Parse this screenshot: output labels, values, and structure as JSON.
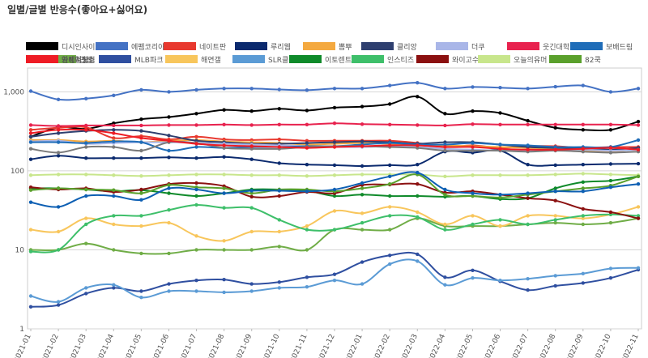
{
  "chart_data": {
    "type": "line",
    "title": "일별/글별 반응수(좋아요+싫어요)",
    "xlabel": "",
    "ylabel": "",
    "y_scale": "log",
    "ylim": [
      1,
      2000
    ],
    "yticks": [
      1,
      10,
      100,
      1000
    ],
    "ytick_labels": [
      "1",
      "10",
      "100",
      "1,000"
    ],
    "grid": true,
    "legend_position": "top",
    "x": [
      "2021-01",
      "2021-02",
      "2021-03",
      "2021-04",
      "2021-05",
      "2021-06",
      "2021-07",
      "2021-08",
      "2021-09",
      "2021-10",
      "2021-11",
      "2021-12",
      "2022-01",
      "2022-02",
      "2022-03",
      "2022-04",
      "2022-05",
      "2022-06",
      "2022-07",
      "2022-08",
      "2022-09",
      "2022-10",
      "2022-11"
    ],
    "series": [
      {
        "name": "디시인사이드",
        "color": "#000000",
        "values": [
          270,
          355,
          340,
          400,
          450,
          480,
          530,
          590,
          570,
          610,
          580,
          630,
          650,
          700,
          870,
          530,
          570,
          540,
          430,
          350,
          330,
          330,
          420
        ]
      },
      {
        "name": "에펨코리아",
        "color": "#4472c4",
        "values": [
          1020,
          800,
          820,
          900,
          1060,
          1000,
          1060,
          1100,
          1100,
          1070,
          1050,
          1100,
          1100,
          1200,
          1300,
          1100,
          1150,
          1130,
          1100,
          1160,
          1200,
          1000,
          1100
        ]
      },
      {
        "name": "네이트판",
        "color": "#e8392f",
        "values": [
          330,
          350,
          355,
          260,
          275,
          250,
          270,
          250,
          245,
          250,
          240,
          240,
          240,
          240,
          225,
          200,
          210,
          195,
          205,
          205,
          195,
          200,
          200
        ]
      },
      {
        "name": "루리웹",
        "color": "#0b2a6e",
        "values": [
          140,
          155,
          145,
          145,
          145,
          148,
          145,
          150,
          140,
          125,
          120,
          118,
          115,
          118,
          120,
          175,
          170,
          180,
          120,
          118,
          120,
          122,
          123
        ]
      },
      {
        "name": "뽐뿌",
        "color": "#f4a940",
        "values": [
          245,
          245,
          235,
          240,
          230,
          240,
          245,
          235,
          230,
          225,
          215,
          220,
          225,
          220,
          215,
          210,
          205,
          200,
          195,
          190,
          180,
          175,
          190
        ]
      },
      {
        "name": "클리앙",
        "color": "#2e3f6f",
        "values": [
          270,
          300,
          320,
          330,
          320,
          280,
          240,
          230,
          220,
          220,
          225,
          230,
          235,
          230,
          220,
          230,
          230,
          215,
          200,
          195,
          195,
          185,
          195
        ]
      },
      {
        "name": "더쿠",
        "color": "#a9b6e8",
        "values": [
          235,
          240,
          220,
          225,
          230,
          230,
          225,
          220,
          215,
          210,
          205,
          200,
          200,
          205,
          200,
          190,
          185,
          180,
          180,
          185,
          185,
          180,
          185
        ]
      },
      {
        "name": "웃긴대학",
        "color": "#e8224e",
        "values": [
          380,
          370,
          375,
          375,
          375,
          380,
          380,
          385,
          380,
          385,
          385,
          400,
          390,
          385,
          380,
          375,
          390,
          385,
          385,
          385,
          385,
          385,
          380
        ]
      },
      {
        "name": "보배드림",
        "color": "#1f6db8",
        "values": [
          230,
          230,
          225,
          235,
          230,
          180,
          200,
          195,
          200,
          200,
          205,
          205,
          215,
          225,
          215,
          215,
          225,
          215,
          210,
          200,
          200,
          200,
          245
        ]
      },
      {
        "name": "안쌤",
        "color": "#70ad47",
        "values": [
          10,
          10,
          12,
          10,
          9,
          9,
          10,
          10,
          10,
          11,
          10,
          18,
          18,
          18,
          25,
          20,
          20,
          20,
          21,
          22,
          21,
          22,
          25
        ]
      },
      {
        "name": "MLB파크",
        "color": "#2f4fa0",
        "values": [
          1.9,
          2,
          2.8,
          3.3,
          3,
          3.7,
          4.1,
          4.2,
          3.7,
          3.9,
          4.5,
          4.9,
          7,
          8.5,
          8.8,
          4.5,
          5.5,
          4,
          3.1,
          3.5,
          3.8,
          4.4,
          5.6
        ]
      },
      {
        "name": "해연갤",
        "color": "#f8c65c",
        "values": [
          18,
          17,
          25,
          21,
          20,
          22,
          15,
          13,
          17,
          17,
          20,
          31,
          29,
          35,
          30,
          21,
          27,
          20,
          27,
          27,
          25,
          28,
          35
        ]
      },
      {
        "name": "SLR클럽",
        "color": "#5b9bd5",
        "values": [
          2.6,
          2.2,
          3.3,
          3.6,
          2.5,
          3,
          3,
          2.9,
          3,
          3.3,
          3.4,
          4.1,
          3.7,
          6.6,
          7.2,
          3.6,
          4.4,
          4.1,
          4.3,
          4.7,
          5,
          5.8,
          5.9
        ]
      },
      {
        "name": "이토렌트",
        "color": "#0f8a2a",
        "values": [
          60,
          60,
          58,
          55,
          57,
          52,
          48,
          52,
          58,
          58,
          56,
          48,
          50,
          48,
          48,
          47,
          48,
          44,
          45,
          60,
          72,
          75,
          85
        ]
      },
      {
        "name": "인스티즈",
        "color": "#3ebf6a",
        "values": [
          9.5,
          10,
          21,
          27,
          27,
          32,
          37,
          34,
          34,
          24,
          18,
          18,
          22,
          27,
          26,
          18,
          21,
          24,
          21,
          24,
          27,
          28,
          27
        ]
      },
      {
        "name": "와이고수",
        "color": "#8b1010",
        "values": [
          62,
          58,
          60,
          54,
          58,
          68,
          70,
          64,
          47,
          48,
          54,
          52,
          66,
          67,
          68,
          53,
          55,
          50,
          45,
          42,
          33,
          30,
          25
        ]
      },
      {
        "name": "오늘의유머",
        "color": "#c8e68c",
        "values": [
          88,
          90,
          90,
          88,
          86,
          88,
          90,
          90,
          88,
          88,
          86,
          88,
          90,
          90,
          90,
          85,
          88,
          88,
          88,
          90,
          92,
          90,
          88
        ]
      },
      {
        "name": "82쿡",
        "color": "#5aa02c",
        "values": [
          57,
          60,
          58,
          57,
          52,
          66,
          62,
          60,
          52,
          58,
          58,
          55,
          60,
          68,
          90,
          50,
          48,
          46,
          50,
          55,
          60,
          65,
          85
        ]
      },
      {
        "name": "딴지일보",
        "color": "#7a7a7a",
        "values": [
          190,
          170,
          200,
          200,
          180,
          230,
          225,
          195,
          190,
          190,
          200,
          205,
          205,
          200,
          195,
          180,
          180,
          180,
          175,
          180,
          175,
          170,
          175
        ]
      },
      {
        "name": "가생이닷컴",
        "color": "#0d5fb3",
        "values": [
          40,
          35,
          48,
          48,
          43,
          60,
          58,
          52,
          56,
          56,
          55,
          58,
          70,
          85,
          95,
          58,
          52,
          50,
          52,
          55,
          55,
          62,
          68
        ]
      },
      {
        "name": "일베저장소",
        "color": "#ee1c25",
        "values": [
          300,
          330,
          330,
          300,
          260,
          240,
          220,
          210,
          205,
          200,
          195,
          200,
          205,
          210,
          210,
          200,
          200,
          190,
          185,
          185,
          190,
          195,
          185
        ]
      }
    ]
  }
}
